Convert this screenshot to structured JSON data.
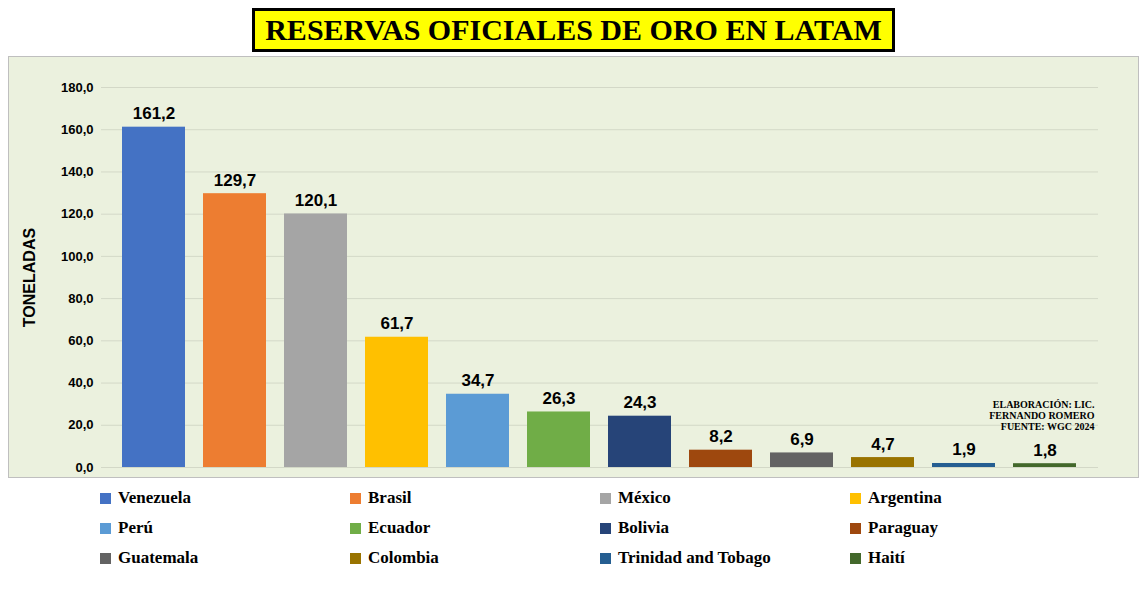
{
  "chart_data": {
    "type": "bar",
    "title": "RESERVAS OFICIALES DE ORO EN LATAM",
    "y_label": "TONELADAS",
    "categories": [
      "Venezuela",
      "Brasil",
      "México",
      "Argentina",
      "Perú",
      "Ecuador",
      "Bolivia",
      "Paraguay",
      "Guatemala",
      "Colombia",
      "Trinidad and Tobago",
      "Haití"
    ],
    "values": [
      161.2,
      129.7,
      120.1,
      61.7,
      34.7,
      26.3,
      24.3,
      8.2,
      6.9,
      4.7,
      1.9,
      1.8
    ],
    "value_labels": [
      "161,2",
      "129,7",
      "120,1",
      "61,7",
      "34,7",
      "26,3",
      "24,3",
      "8,2",
      "6,9",
      "4,7",
      "1,9",
      "1,8"
    ],
    "colors": [
      "#4472C4",
      "#ED7D31",
      "#A5A5A5",
      "#FFC000",
      "#5B9BD5",
      "#70AD47",
      "#264478",
      "#9E480E",
      "#636363",
      "#997300",
      "#255E91",
      "#43682B"
    ],
    "ylim": [
      0,
      180
    ],
    "yticks": [
      {
        "value": 0,
        "label": "0,0"
      },
      {
        "value": 20,
        "label": "20,0"
      },
      {
        "value": 40,
        "label": "40,0"
      },
      {
        "value": 60,
        "label": "60,0"
      },
      {
        "value": 80,
        "label": "80,0"
      },
      {
        "value": 100,
        "label": "100,0"
      },
      {
        "value": 120,
        "label": "120,0"
      },
      {
        "value": 140,
        "label": "140,0"
      },
      {
        "value": 160,
        "label": "160,0"
      },
      {
        "value": 180,
        "label": "180,0"
      }
    ],
    "grid": true,
    "data_labels": true,
    "tick_labels": "y",
    "legend": "bottom",
    "annotations": [
      "ELABORACIÓN: LIC.",
      "FERNANDO ROMERO",
      "FUENTE: WGC 2024"
    ]
  }
}
